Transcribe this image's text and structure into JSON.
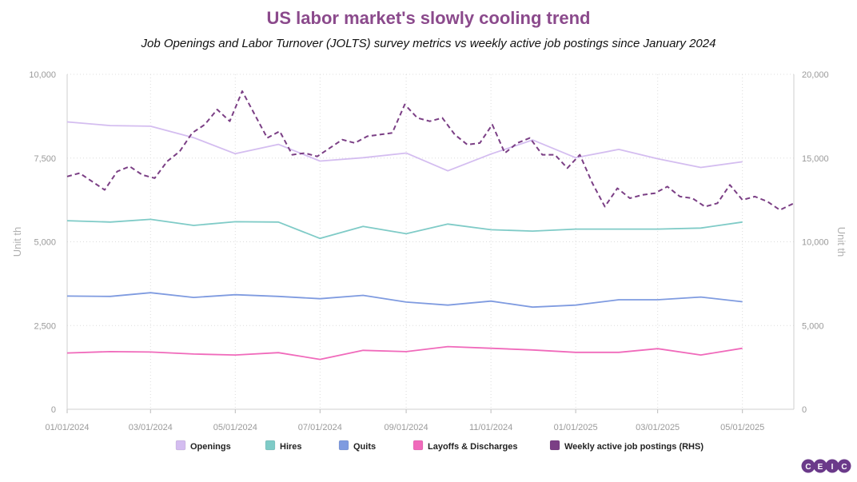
{
  "chart_data": {
    "type": "line",
    "title": "US labor market's slowly cooling trend",
    "subtitle": "Job Openings and Labor Turnover (JOLTS) survey metrics vs weekly active job postings since January 2024",
    "ylabel_left": "Unit th",
    "ylabel_right": "Unit th",
    "ylim_left": [
      0,
      10000
    ],
    "ylim_right": [
      0,
      20000
    ],
    "yticks_left": [
      "0",
      "2,500",
      "5,000",
      "7,500",
      "10,000"
    ],
    "yticks_right": [
      "0",
      "5,000",
      "10,000",
      "15,000",
      "20,000"
    ],
    "xlim": [
      "2024-01-01",
      "2025-06-07"
    ],
    "xticks": [
      {
        "date": "2024-01-01",
        "label": "01/01/2024"
      },
      {
        "date": "2024-03-01",
        "label": "03/01/2024"
      },
      {
        "date": "2024-05-01",
        "label": "05/01/2024"
      },
      {
        "date": "2024-07-01",
        "label": "07/01/2024"
      },
      {
        "date": "2024-09-01",
        "label": "09/01/2024"
      },
      {
        "date": "2024-11-01",
        "label": "11/01/2024"
      },
      {
        "date": "2025-01-01",
        "label": "01/01/2025"
      },
      {
        "date": "2025-03-01",
        "label": "03/01/2025"
      },
      {
        "date": "2025-05-01",
        "label": "05/01/2025"
      }
    ],
    "grid": true,
    "legend_position": "bottom",
    "monthly_dates": [
      "2024-01-01",
      "2024-02-01",
      "2024-03-01",
      "2024-04-01",
      "2024-05-01",
      "2024-06-01",
      "2024-07-01",
      "2024-08-01",
      "2024-09-01",
      "2024-10-01",
      "2024-11-01",
      "2024-12-01",
      "2025-01-01",
      "2025-02-01",
      "2025-03-01",
      "2025-04-01",
      "2025-05-01"
    ],
    "series": [
      {
        "name": "Openings",
        "axis": "left",
        "color": "#d4bdf0",
        "dashed": false,
        "values": [
          8580,
          8470,
          8450,
          8110,
          7630,
          7910,
          7410,
          7510,
          7650,
          7120,
          7620,
          8040,
          7510,
          7760,
          7480,
          7220,
          7390
        ]
      },
      {
        "name": "Hires",
        "axis": "left",
        "color": "#7fcbc7",
        "dashed": false,
        "values": [
          5630,
          5590,
          5670,
          5490,
          5600,
          5590,
          5100,
          5460,
          5240,
          5530,
          5360,
          5320,
          5380,
          5380,
          5380,
          5410,
          5590
        ]
      },
      {
        "name": "Quits",
        "axis": "left",
        "color": "#7f9be0",
        "dashed": false,
        "values": [
          3380,
          3370,
          3480,
          3340,
          3420,
          3370,
          3300,
          3400,
          3200,
          3110,
          3230,
          3050,
          3110,
          3270,
          3270,
          3350,
          3210
        ]
      },
      {
        "name": "Layoffs & Discharges",
        "axis": "left",
        "color": "#f06abb",
        "dashed": false,
        "values": [
          1680,
          1720,
          1710,
          1650,
          1620,
          1690,
          1490,
          1760,
          1720,
          1870,
          1820,
          1770,
          1700,
          1700,
          1810,
          1620,
          1820
        ]
      },
      {
        "name": "Weekly active job postings (RHS)",
        "axis": "right",
        "color": "#7b3f85",
        "dashed": true,
        "dates": [
          "2024-01-01",
          "2024-01-10",
          "2024-01-19",
          "2024-01-28",
          "2024-02-06",
          "2024-02-15",
          "2024-02-24",
          "2024-03-04",
          "2024-03-13",
          "2024-03-22",
          "2024-03-31",
          "2024-04-09",
          "2024-04-18",
          "2024-04-27",
          "2024-05-06",
          "2024-05-15",
          "2024-05-24",
          "2024-06-02",
          "2024-06-11",
          "2024-06-20",
          "2024-06-29",
          "2024-07-08",
          "2024-07-17",
          "2024-07-26",
          "2024-08-04",
          "2024-08-13",
          "2024-08-22",
          "2024-08-31",
          "2024-09-09",
          "2024-09-18",
          "2024-09-27",
          "2024-10-06",
          "2024-10-15",
          "2024-10-24",
          "2024-11-02",
          "2024-11-11",
          "2024-11-20",
          "2024-11-29",
          "2024-12-08",
          "2024-12-17",
          "2024-12-26",
          "2025-01-04",
          "2025-01-13",
          "2025-01-22",
          "2025-01-31",
          "2025-02-09",
          "2025-02-18",
          "2025-02-27",
          "2025-03-08",
          "2025-03-17",
          "2025-03-26",
          "2025-04-04",
          "2025-04-13",
          "2025-04-22",
          "2025-05-01",
          "2025-05-10",
          "2025-05-19",
          "2025-05-28",
          "2025-06-07"
        ],
        "values": [
          13900,
          14100,
          13600,
          13100,
          14200,
          14500,
          14000,
          13800,
          14800,
          15400,
          16500,
          17000,
          17900,
          17200,
          19000,
          17600,
          16200,
          16600,
          15200,
          15300,
          15100,
          15600,
          16100,
          15900,
          16300,
          16400,
          16500,
          18200,
          17400,
          17200,
          17400,
          16400,
          15800,
          15900,
          17000,
          15300,
          15900,
          16200,
          15200,
          15200,
          14400,
          15200,
          13500,
          12100,
          13200,
          12600,
          12800,
          12900,
          13300,
          12700,
          12600,
          12100,
          12300,
          13400,
          12500,
          12700,
          12400,
          11900,
          12300
        ]
      }
    ]
  },
  "logo": {
    "letters": [
      "C",
      "E",
      "I",
      "C"
    ],
    "color": "#6b3a8a"
  }
}
